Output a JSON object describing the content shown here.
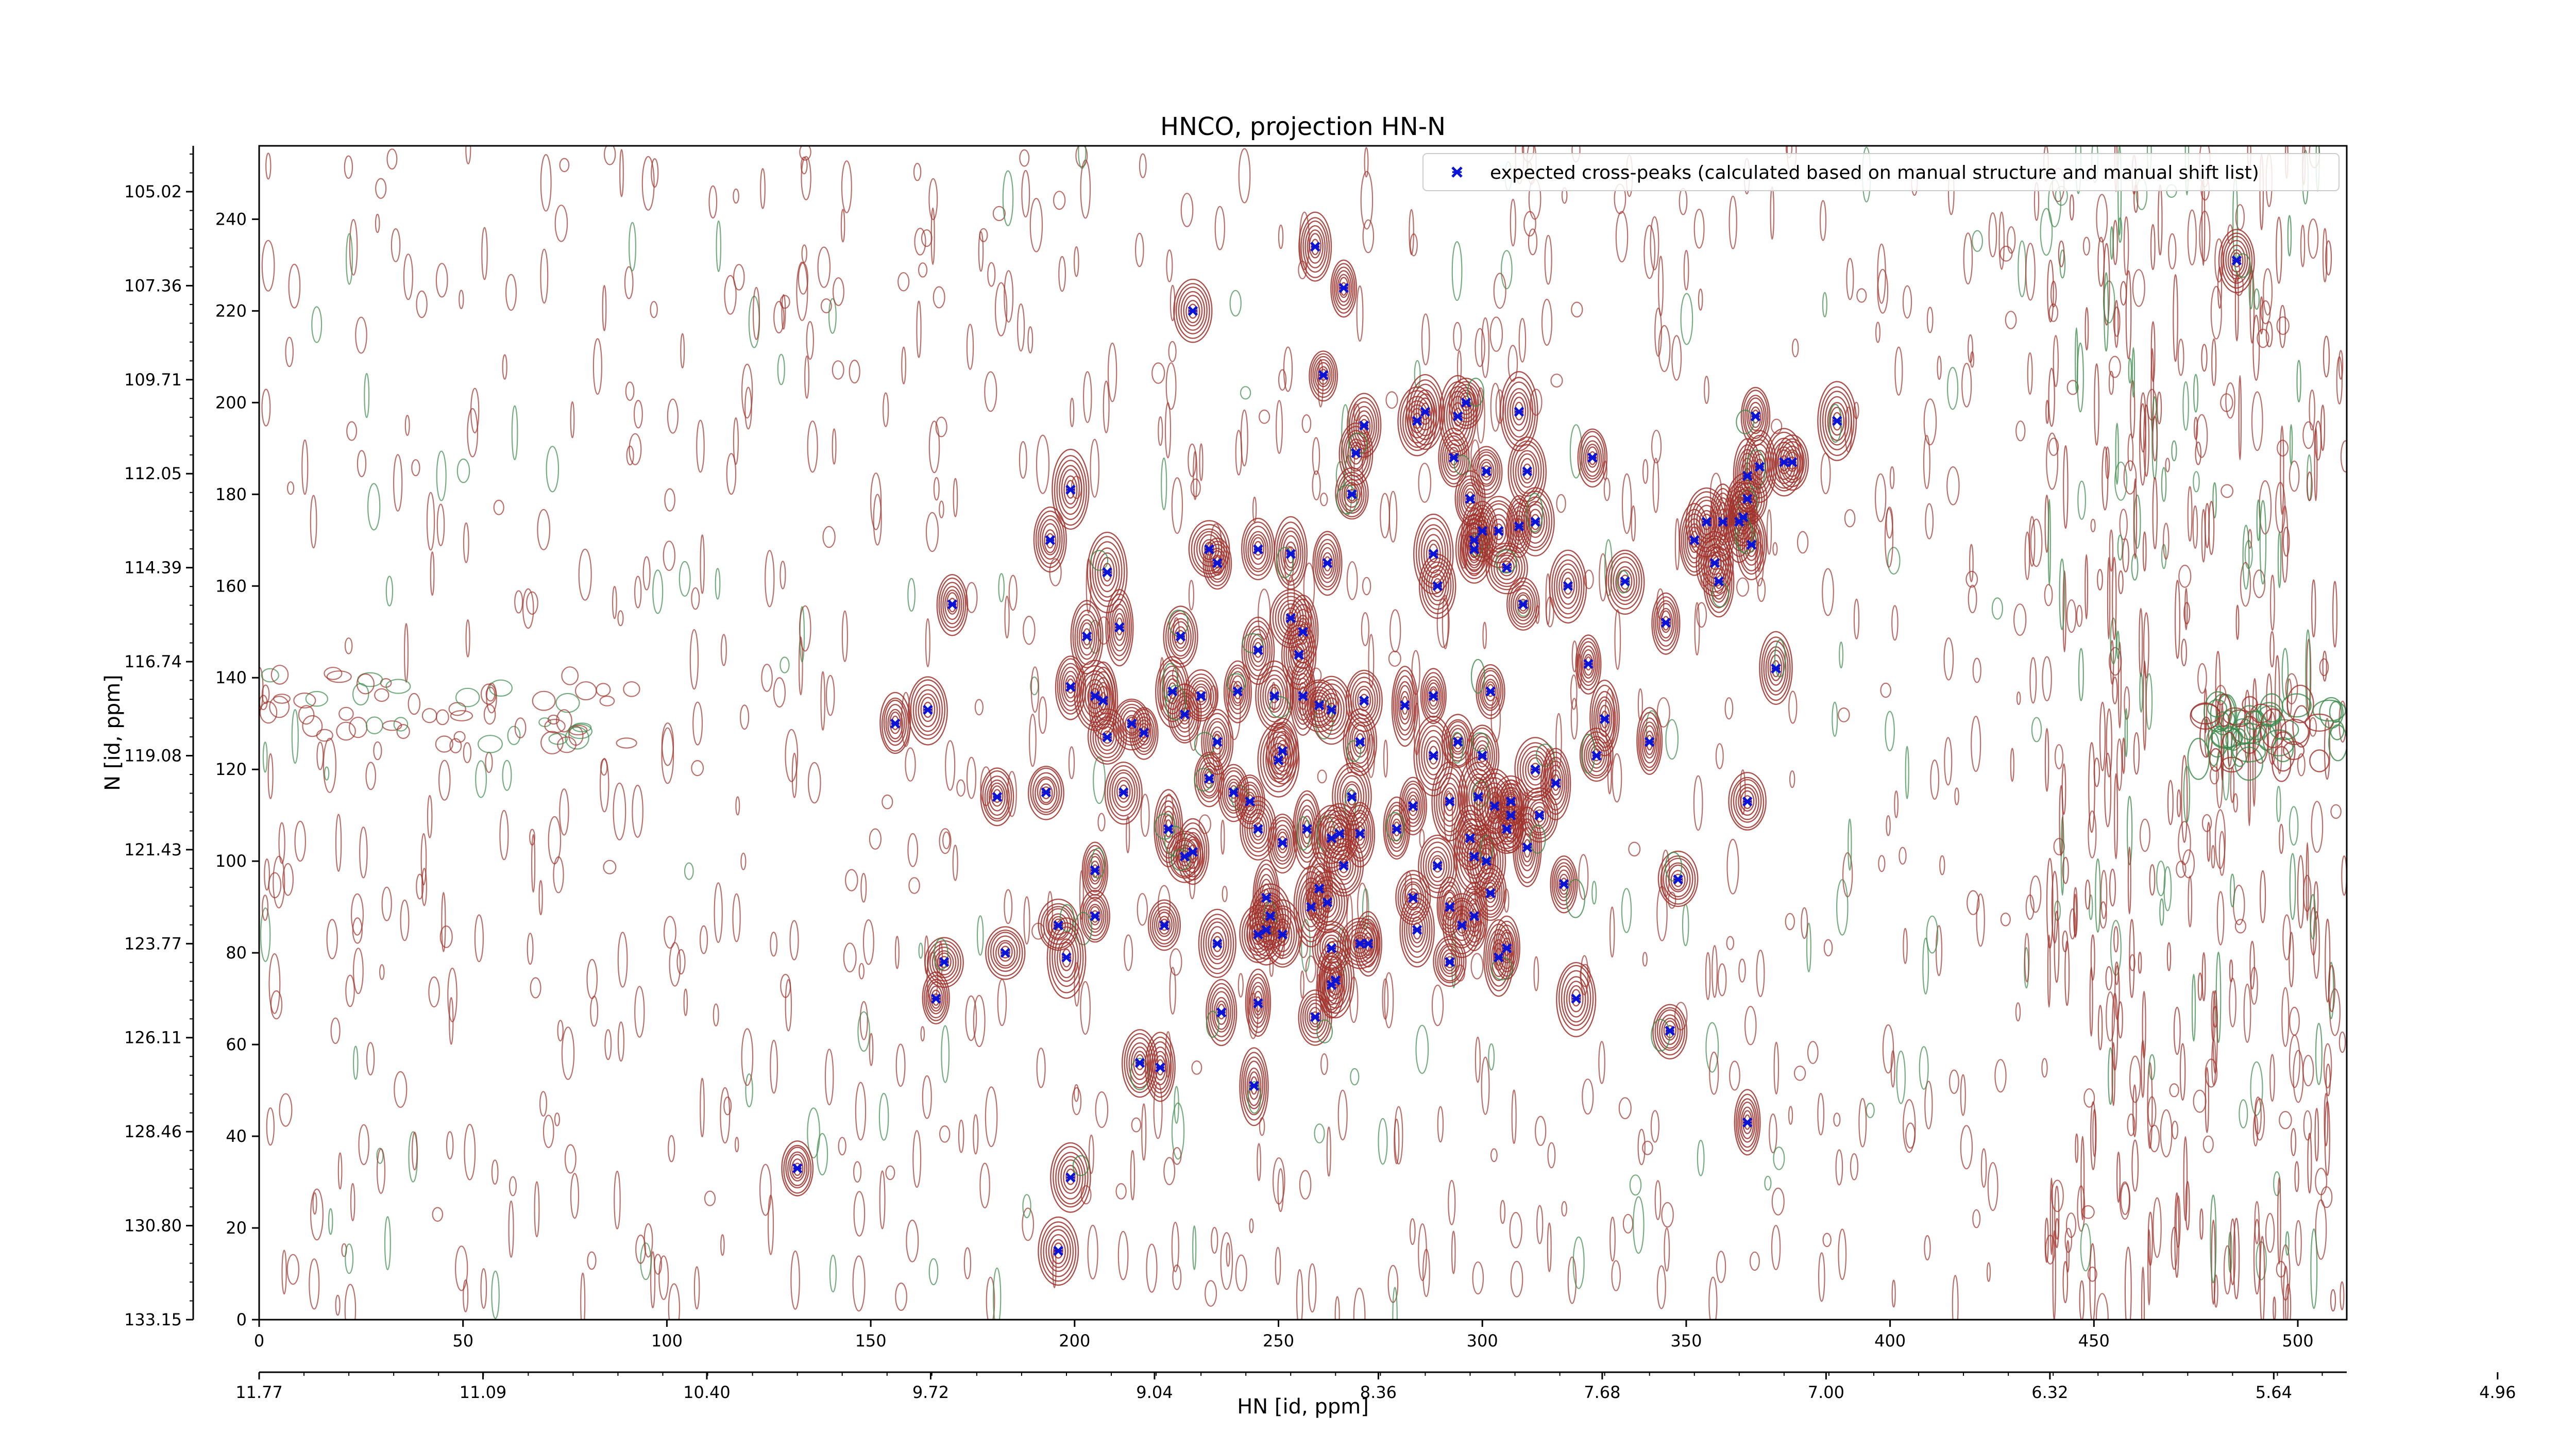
{
  "chart_data": {
    "type": "scatter",
    "title": "HNCO, projection HN-N",
    "xlabel": "HN [id, ppm]",
    "ylabel": "N [id, ppm]",
    "xlim": [
      0,
      512
    ],
    "ylim": [
      0,
      256
    ],
    "x_ticks": [
      0,
      50,
      100,
      150,
      200,
      250,
      300,
      350,
      400,
      450,
      500
    ],
    "y_ticks": [
      0,
      20,
      40,
      60,
      80,
      100,
      120,
      140,
      160,
      180,
      200,
      220,
      240
    ],
    "x_ppm_ticks": [
      "11.77",
      "11.09",
      "10.40",
      "9.72",
      "9.04",
      "8.36",
      "7.68",
      "7.00",
      "6.32",
      "5.64",
      "4.96"
    ],
    "y_ppm_ticks": [
      "133.15",
      "130.80",
      "128.46",
      "126.11",
      "123.77",
      "121.43",
      "119.08",
      "116.74",
      "114.39",
      "112.05",
      "109.71",
      "107.36",
      "105.02"
    ],
    "grid": false,
    "legend_position": "top-right",
    "colors": {
      "positive_contour": "#a0302a",
      "negative_contour": "#3a8a4a",
      "peak_marker": "#0a14d8"
    },
    "series": [
      {
        "name": "expected cross-peaks (calculated based on manual structure and manual shift list)",
        "marker": "x",
        "color": "#0a14d8",
        "points": [
          [
            259,
            234
          ],
          [
            485,
            231
          ],
          [
            229,
            220
          ],
          [
            266,
            225
          ],
          [
            261,
            206
          ],
          [
            271,
            195
          ],
          [
            269,
            189
          ],
          [
            284,
            196
          ],
          [
            286,
            198
          ],
          [
            294,
            197
          ],
          [
            296,
            200
          ],
          [
            309,
            198
          ],
          [
            387,
            196
          ],
          [
            367,
            197
          ],
          [
            327,
            188
          ],
          [
            293,
            188
          ],
          [
            301,
            185
          ],
          [
            311,
            185
          ],
          [
            374,
            187
          ],
          [
            376,
            187
          ],
          [
            368,
            186
          ],
          [
            365,
            184
          ],
          [
            297,
            179
          ],
          [
            268,
            180
          ],
          [
            365,
            179
          ],
          [
            364,
            175
          ],
          [
            366,
            169
          ],
          [
            199,
            181
          ],
          [
            352,
            170
          ],
          [
            355,
            174
          ],
          [
            359,
            174
          ],
          [
            363,
            174
          ],
          [
            357,
            165
          ],
          [
            358,
            161
          ],
          [
            194,
            170
          ],
          [
            300,
            172
          ],
          [
            304,
            172
          ],
          [
            309,
            173
          ],
          [
            313,
            174
          ],
          [
            245,
            168
          ],
          [
            298,
            168
          ],
          [
            298,
            170
          ],
          [
            233,
            168
          ],
          [
            235,
            165
          ],
          [
            253,
            167
          ],
          [
            262,
            165
          ],
          [
            208,
            163
          ],
          [
            288,
            167
          ],
          [
            321,
            160
          ],
          [
            335,
            161
          ],
          [
            306,
            164
          ],
          [
            289,
            160
          ],
          [
            170,
            156
          ],
          [
            310,
            156
          ],
          [
            203,
            149
          ],
          [
            211,
            151
          ],
          [
            226,
            149
          ],
          [
            256,
            150
          ],
          [
            255,
            145
          ],
          [
            245,
            146
          ],
          [
            253,
            153
          ],
          [
            345,
            152
          ],
          [
            326,
            143
          ],
          [
            372,
            142
          ],
          [
            164,
            133
          ],
          [
            156,
            130
          ],
          [
            199,
            138
          ],
          [
            205,
            136
          ],
          [
            207,
            135
          ],
          [
            208,
            127
          ],
          [
            224,
            137
          ],
          [
            231,
            136
          ],
          [
            240,
            137
          ],
          [
            249,
            136
          ],
          [
            256,
            136
          ],
          [
            260,
            134
          ],
          [
            263,
            133
          ],
          [
            271,
            135
          ],
          [
            281,
            134
          ],
          [
            288,
            136
          ],
          [
            302,
            137
          ],
          [
            330,
            131
          ],
          [
            214,
            130
          ],
          [
            227,
            132
          ],
          [
            217,
            128
          ],
          [
            235,
            126
          ],
          [
            250,
            122
          ],
          [
            251,
            124
          ],
          [
            270,
            126
          ],
          [
            288,
            123
          ],
          [
            294,
            126
          ],
          [
            341,
            126
          ],
          [
            328,
            123
          ],
          [
            300,
            123
          ],
          [
            313,
            120
          ],
          [
            233,
            118
          ],
          [
            239,
            115
          ],
          [
            268,
            114
          ],
          [
            181,
            114
          ],
          [
            193,
            115
          ],
          [
            212,
            115
          ],
          [
            243,
            113
          ],
          [
            283,
            112
          ],
          [
            292,
            113
          ],
          [
            299,
            114
          ],
          [
            303,
            112
          ],
          [
            307,
            113
          ],
          [
            314,
            110
          ],
          [
            318,
            117
          ],
          [
            365,
            113
          ],
          [
            223,
            107
          ],
          [
            245,
            107
          ],
          [
            251,
            104
          ],
          [
            257,
            107
          ],
          [
            263,
            105
          ],
          [
            265,
            106
          ],
          [
            279,
            107
          ],
          [
            297,
            105
          ],
          [
            298,
            101
          ],
          [
            301,
            100
          ],
          [
            306,
            107
          ],
          [
            307,
            110
          ],
          [
            311,
            103
          ],
          [
            227,
            101
          ],
          [
            229,
            102
          ],
          [
            205,
            98
          ],
          [
            266,
            99
          ],
          [
            270,
            106
          ],
          [
            289,
            99
          ],
          [
            348,
            96
          ],
          [
            302,
            93
          ],
          [
            320,
            95
          ],
          [
            283,
            92
          ],
          [
            292,
            90
          ],
          [
            258,
            90
          ],
          [
            247,
            92
          ],
          [
            247,
            85
          ],
          [
            248,
            88
          ],
          [
            251,
            84
          ],
          [
            260,
            94
          ],
          [
            262,
            91
          ],
          [
            196,
            86
          ],
          [
            205,
            88
          ],
          [
            222,
            86
          ],
          [
            235,
            82
          ],
          [
            245,
            84
          ],
          [
            284,
            85
          ],
          [
            295,
            86
          ],
          [
            298,
            88
          ],
          [
            306,
            81
          ],
          [
            304,
            79
          ],
          [
            263,
            81
          ],
          [
            270,
            82
          ],
          [
            272,
            82
          ],
          [
            168,
            78
          ],
          [
            183,
            80
          ],
          [
            198,
            79
          ],
          [
            264,
            74
          ],
          [
            292,
            78
          ],
          [
            263,
            73
          ],
          [
            166,
            70
          ],
          [
            236,
            67
          ],
          [
            245,
            69
          ],
          [
            259,
            66
          ],
          [
            323,
            70
          ],
          [
            346,
            63
          ],
          [
            216,
            56
          ],
          [
            221,
            55
          ],
          [
            244,
            51
          ],
          [
            365,
            43
          ],
          [
            132,
            33
          ],
          [
            199,
            31
          ],
          [
            196,
            15
          ]
        ]
      }
    ]
  }
}
